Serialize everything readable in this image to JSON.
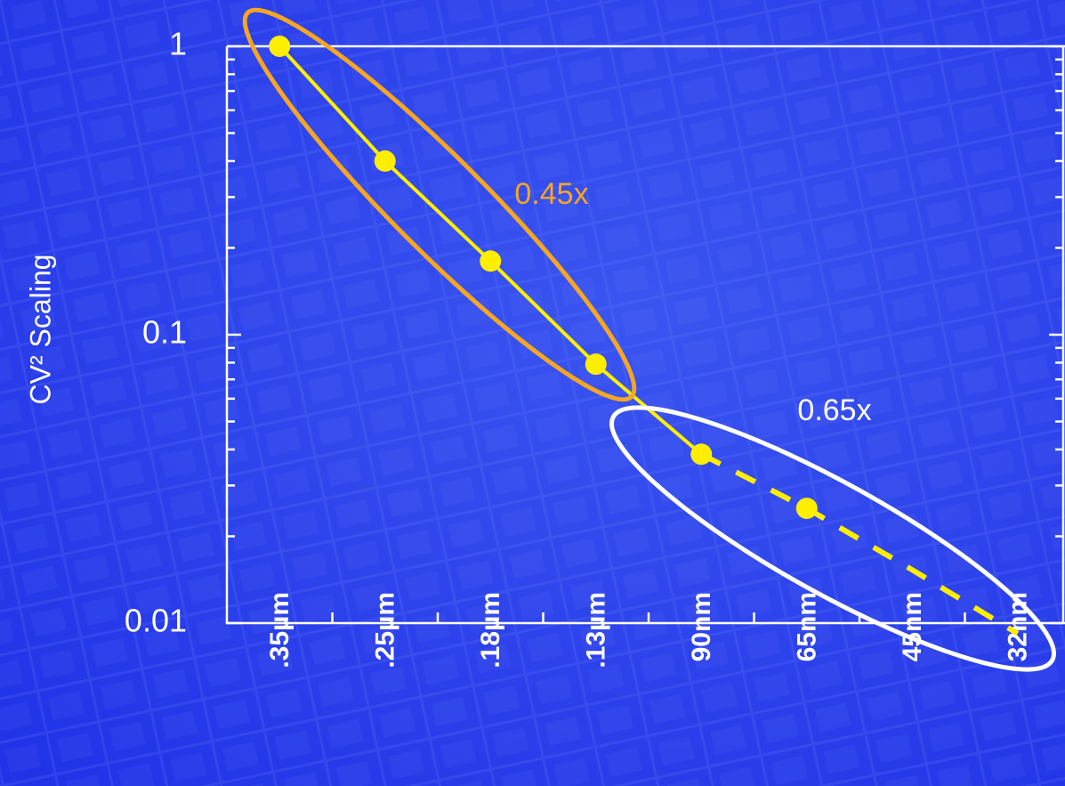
{
  "chart_data": {
    "type": "line",
    "y_label": "CV² Scaling",
    "categories": [
      ".35µm",
      ".25µm",
      ".18µm",
      ".13µm",
      "90nm",
      "65nm",
      "45nm",
      "32nm"
    ],
    "values": [
      1,
      0.4,
      0.18,
      0.079,
      0.0385,
      0.025,
      null,
      null
    ],
    "solid_values": [
      1,
      0.4,
      0.18,
      0.079,
      0.0385,
      null,
      null,
      null
    ],
    "dashed_values": [
      null,
      null,
      null,
      null,
      0.0385,
      0.025,
      0.0153,
      0.0092
    ],
    "color": "#ffee00",
    "log_y": true,
    "ylim": [
      0.01,
      1
    ],
    "yticks": [
      0.01,
      0.1,
      1
    ],
    "yminor": [
      0.02,
      0.03,
      0.04,
      0.05,
      0.06,
      0.07,
      0.08,
      0.09,
      0.2,
      0.3,
      0.4,
      0.5,
      0.6,
      0.7,
      0.8,
      0.9
    ],
    "annotations": [
      {
        "text": "0.45x",
        "color": "#f5a623"
      },
      {
        "text": "0.65x",
        "color": "#ffffff"
      }
    ]
  }
}
